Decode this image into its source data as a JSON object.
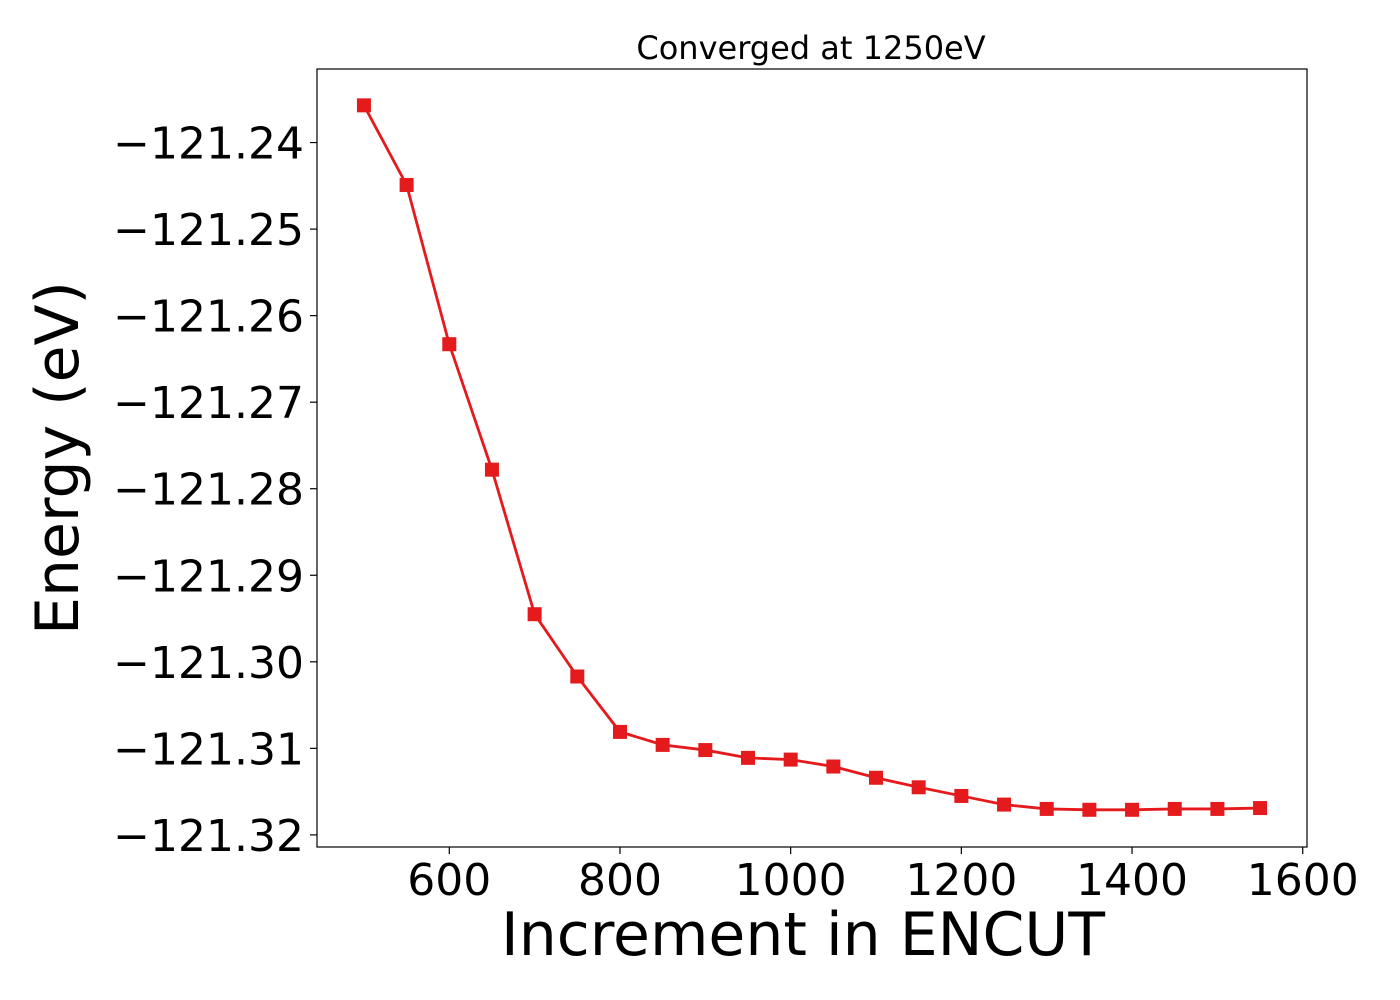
{
  "chart_data": {
    "type": "line",
    "title": "Converged at 1250eV",
    "xlabel": "Increment in ENCUT",
    "ylabel": "Energy (eV)",
    "xlim": [
      445,
      1605
    ],
    "ylim": [
      -121.3214,
      -121.2315
    ],
    "xticks": [
      600,
      800,
      1000,
      1200,
      1400,
      1600
    ],
    "yticks": [
      -121.24,
      -121.25,
      -121.26,
      -121.27,
      -121.28,
      -121.29,
      -121.3,
      -121.31,
      -121.32
    ],
    "xtick_labels": [
      "600",
      "800",
      "1000",
      "1200",
      "1400",
      "1600"
    ],
    "ytick_labels": [
      "−121.24",
      "−121.25",
      "−121.26",
      "−121.27",
      "−121.28",
      "−121.29",
      "−121.30",
      "−121.31",
      "−121.32"
    ],
    "grid": false,
    "marker": "square",
    "color": "#e41a1c",
    "series": [
      {
        "x": [
          500,
          550,
          600,
          650,
          700,
          750,
          800,
          850,
          900,
          950,
          1000,
          1050,
          1100,
          1150,
          1200,
          1250,
          1300,
          1350,
          1400,
          1450,
          1500,
          1550
        ],
        "y": [
          -121.2357,
          -121.2449,
          -121.2633,
          -121.2778,
          -121.2945,
          -121.3017,
          -121.3081,
          -121.3096,
          -121.3102,
          -121.3111,
          -121.3113,
          -121.3121,
          -121.3134,
          -121.3145,
          -121.3155,
          -121.3165,
          -121.317,
          -121.3171,
          -121.3171,
          -121.317,
          -121.317,
          -121.3169
        ]
      }
    ]
  }
}
